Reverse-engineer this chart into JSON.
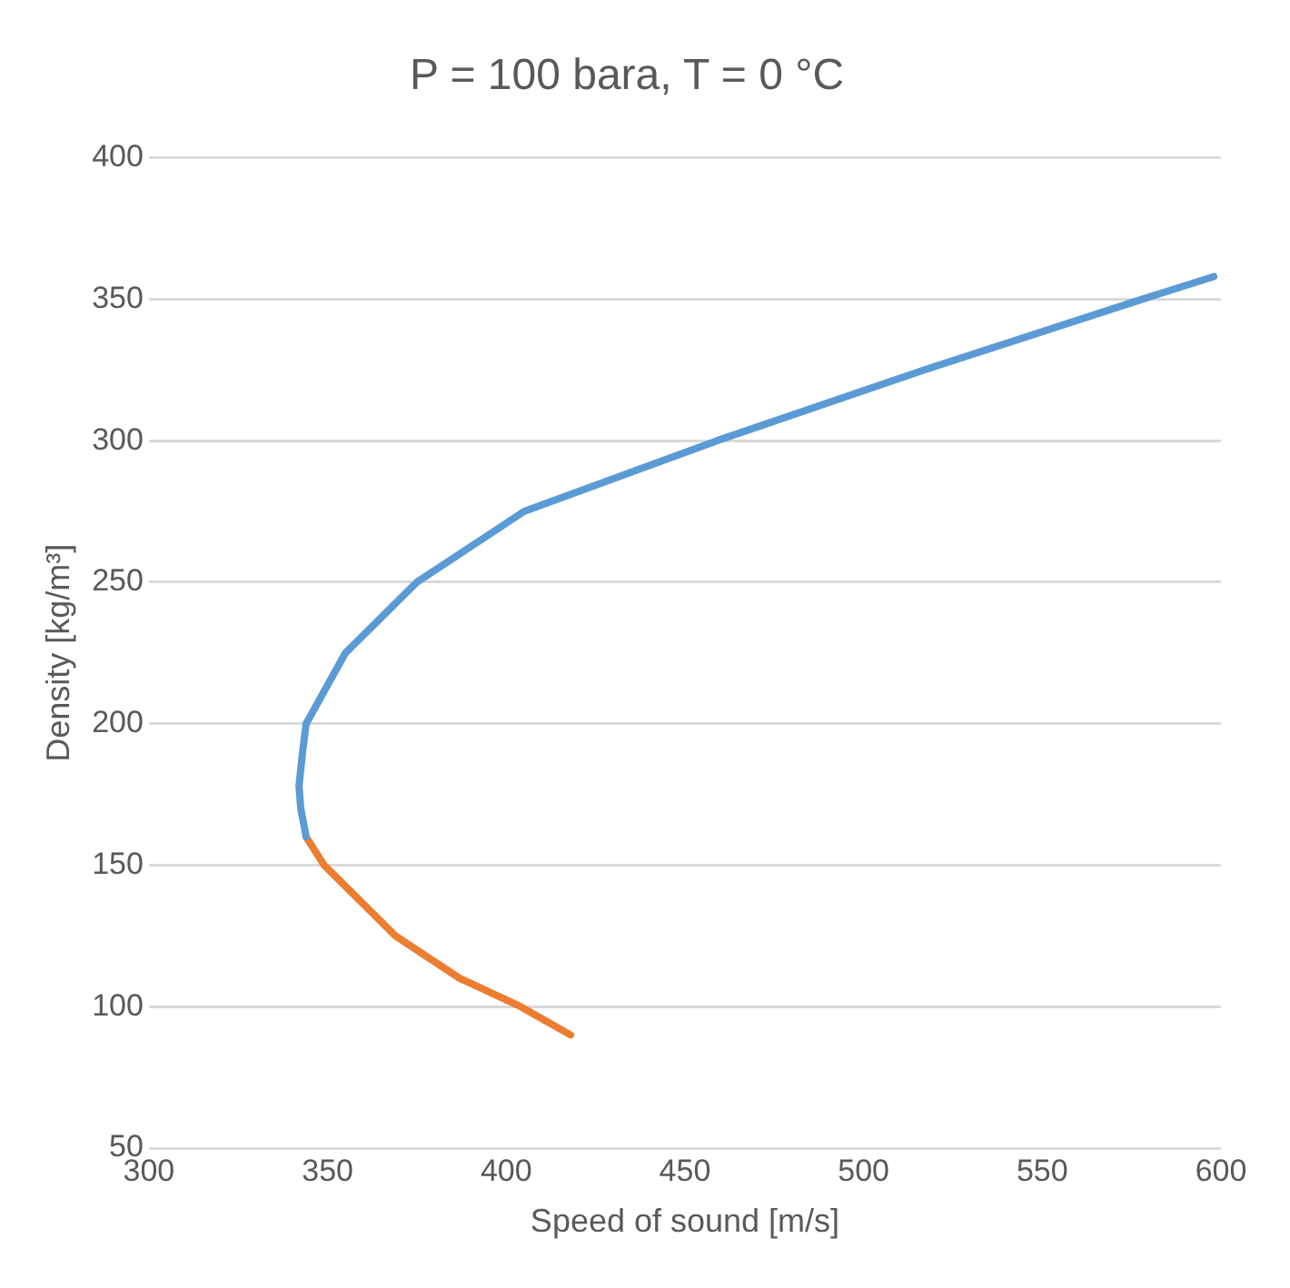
{
  "chart_data": {
    "type": "line",
    "title": "P = 100 bara, T = 0 °C",
    "xlabel": "Speed of sound [m/s]",
    "ylabel": "Density [kg/m³]",
    "xlim": [
      300,
      600
    ],
    "xticks": [
      300,
      350,
      400,
      450,
      500,
      550,
      600
    ],
    "ylim": [
      50,
      400
    ],
    "yticks": [
      50,
      100,
      150,
      200,
      250,
      300,
      350,
      400
    ],
    "grid": "y",
    "marker": "none",
    "series": [
      {
        "color": "#5b9bd5",
        "x": [
          344,
          342.5,
          342,
          343,
          344,
          355,
          375,
          405,
          459,
          517,
          578,
          598
        ],
        "values": [
          160,
          170,
          178,
          190,
          200,
          225,
          250,
          275,
          300,
          325,
          350,
          358
        ]
      },
      {
        "color": "#ed7d31",
        "x": [
          344,
          349,
          369,
          387,
          404,
          418
        ],
        "values": [
          160,
          150,
          125,
          110,
          100,
          90
        ]
      }
    ]
  }
}
